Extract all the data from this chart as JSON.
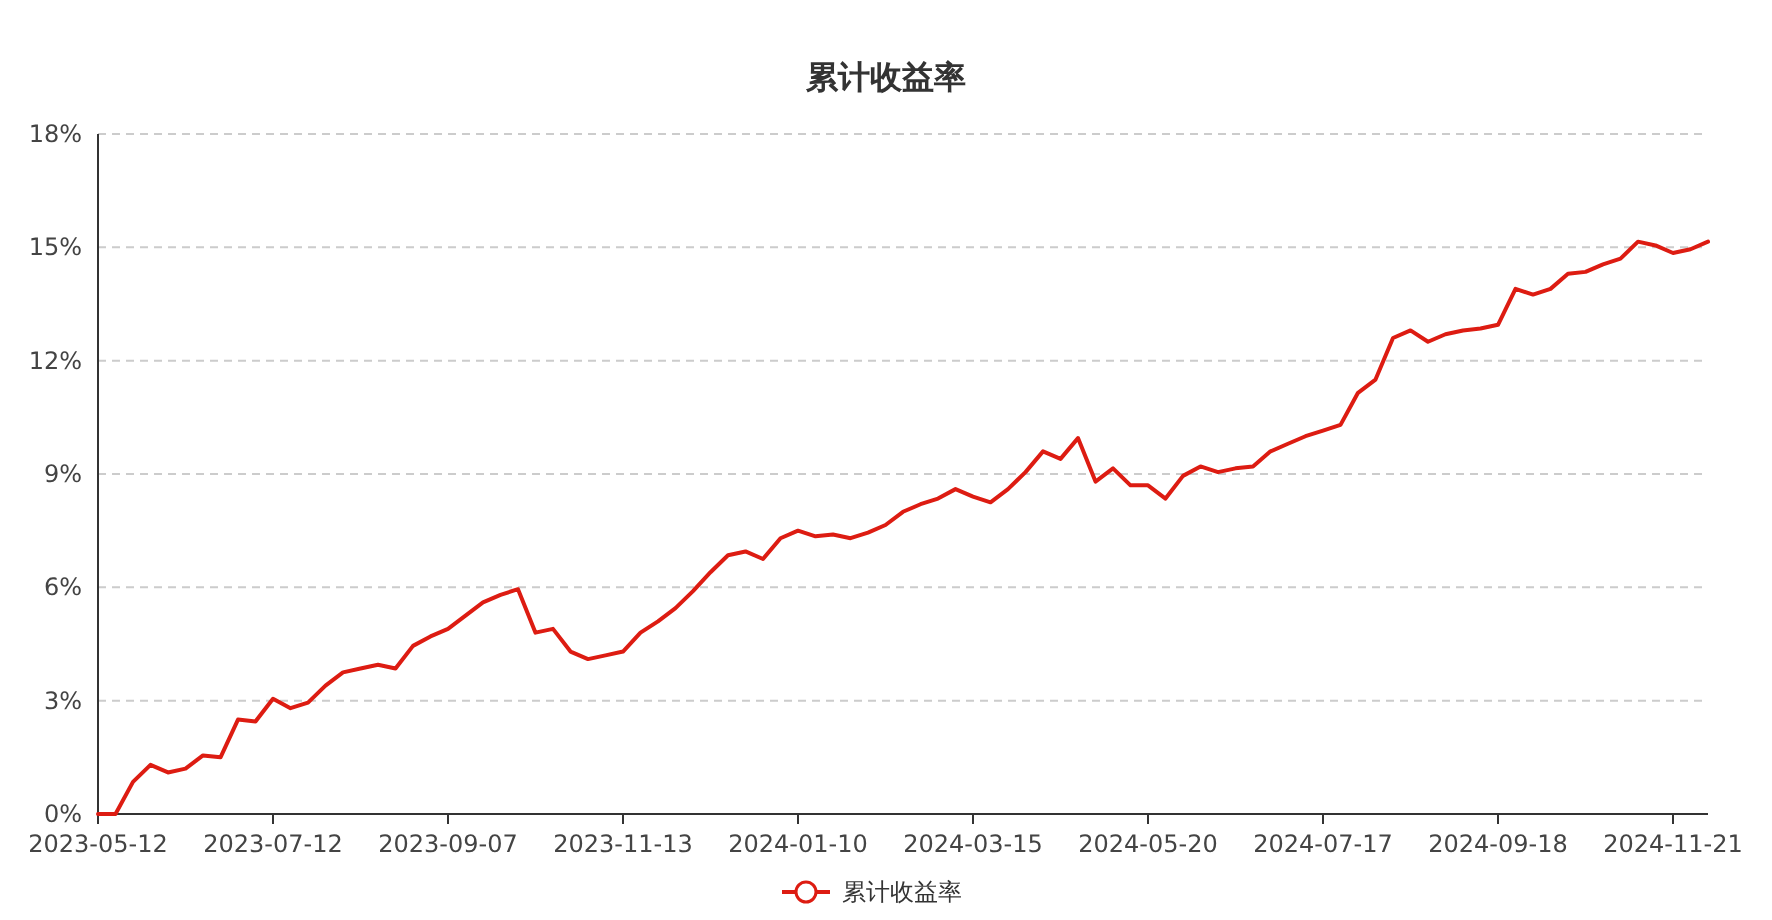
{
  "chart_data": {
    "type": "line",
    "title": "累计收益率",
    "legend": "bottom",
    "grid": "y",
    "line_style": "solid",
    "categories": [
      "2023-05-12",
      null,
      null,
      null,
      null,
      null,
      null,
      null,
      null,
      null,
      "2023-07-12",
      null,
      null,
      null,
      null,
      null,
      null,
      null,
      null,
      null,
      "2023-09-07",
      null,
      null,
      null,
      null,
      null,
      null,
      null,
      null,
      null,
      "2023-11-13",
      null,
      null,
      null,
      null,
      null,
      null,
      null,
      null,
      null,
      "2024-01-10",
      null,
      null,
      null,
      null,
      null,
      null,
      null,
      null,
      null,
      "2024-03-15",
      null,
      null,
      null,
      null,
      null,
      null,
      null,
      null,
      null,
      "2024-05-20",
      null,
      null,
      null,
      null,
      null,
      null,
      null,
      null,
      null,
      "2024-07-17",
      null,
      null,
      null,
      null,
      null,
      null,
      null,
      null,
      null,
      "2024-09-18",
      null,
      null,
      null,
      null,
      null,
      null,
      null,
      null,
      null,
      "2024-11-21",
      null,
      null
    ],
    "ylim": [
      0,
      18
    ],
    "yticks": [
      {
        "value": 0,
        "label": "0%"
      },
      {
        "value": 3,
        "label": "3%"
      },
      {
        "value": 6,
        "label": "6%"
      },
      {
        "value": 9,
        "label": "9%"
      },
      {
        "value": 12,
        "label": "12%"
      },
      {
        "value": 15,
        "label": "15%"
      },
      {
        "value": 18,
        "label": "18%"
      }
    ],
    "series": [
      {
        "name": "累计收益率",
        "color": "#dd1c12",
        "values": [
          0,
          0,
          0.85,
          1.3,
          1.1,
          1.2,
          1.55,
          1.5,
          2.5,
          2.45,
          3.05,
          2.8,
          2.95,
          3.4,
          3.75,
          3.85,
          3.95,
          3.85,
          4.45,
          4.7,
          4.9,
          5.25,
          5.6,
          5.8,
          5.95,
          4.8,
          4.9,
          4.3,
          4.1,
          4.2,
          4.3,
          4.8,
          5.1,
          5.45,
          5.9,
          6.4,
          6.85,
          6.95,
          6.75,
          7.3,
          7.5,
          7.35,
          7.4,
          7.3,
          7.45,
          7.65,
          8.0,
          8.2,
          8.35,
          8.6,
          8.4,
          8.25,
          8.6,
          9.05,
          9.6,
          9.4,
          9.95,
          8.8,
          9.15,
          8.7,
          8.7,
          8.35,
          8.95,
          9.2,
          9.05,
          9.15,
          9.2,
          9.6,
          9.8,
          10.0,
          10.15,
          10.3,
          11.15,
          11.5,
          12.6,
          12.8,
          12.5,
          12.7,
          12.8,
          12.85,
          12.95,
          13.9,
          13.75,
          13.9,
          14.3,
          14.35,
          14.55,
          14.7,
          15.15,
          15.05,
          14.85,
          14.95,
          15.15
        ]
      }
    ]
  }
}
